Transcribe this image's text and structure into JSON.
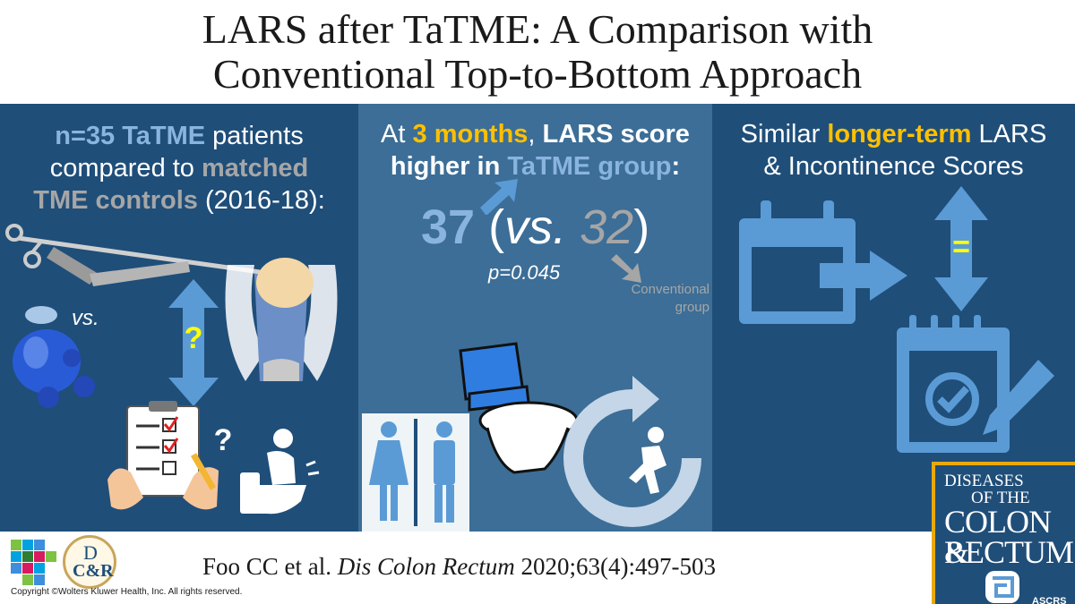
{
  "title": {
    "line1": "LARS after TaTME: A Comparison with",
    "line2": "Conventional Top-to-Bottom Approach"
  },
  "left_panel": {
    "n": "n=35 TaTME",
    "t1": " patients",
    "t2": "compared to ",
    "matched": "matched",
    "controls": "TME controls",
    "years": " (2016-18):",
    "vs": "vs.",
    "question": "?",
    "question2": "?"
  },
  "mid_panel": {
    "at": "At ",
    "months": "3 months",
    "comma": ", ",
    "lars": "LARS score",
    "higher": "higher in ",
    "group": "TaTME group",
    "colon": ":",
    "score_tatme": "37",
    "open": " (",
    "vs": "vs.",
    "space": " ",
    "score_conv": "32",
    "close": ")",
    "pvalue": "p=0.045",
    "conv_line1": "Conventional",
    "conv_line2": "group"
  },
  "right_panel": {
    "similar": "Similar ",
    "longer": "longer-term",
    "lars": " LARS",
    "line2": "& Incontinence Scores",
    "equals": "="
  },
  "journal": {
    "l1": "DISEASES",
    "l2": "OF THE",
    "l3": "COLON &",
    "l4": "RECTUM",
    "society": "ASCRS"
  },
  "dcr_logo": {
    "d": "D",
    "cr": "C&R"
  },
  "citation": {
    "authors": "Foo CC et al. ",
    "journal": "Dis Colon Rectum",
    "ref": " 2020;63(4):497-503"
  },
  "copyright": "Copyright ©Wolters Kluwer Health, Inc. All rights reserved.",
  "colors": {
    "dark_blue": "#1f4e79",
    "mid_blue": "#3c6e97",
    "light_blue": "#8ab4e0",
    "accent_yellow": "#ffc000",
    "gray": "#a6a6a6"
  }
}
